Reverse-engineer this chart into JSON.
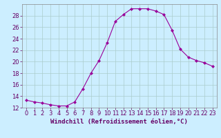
{
  "x": [
    0,
    1,
    2,
    3,
    4,
    5,
    6,
    7,
    8,
    9,
    10,
    11,
    12,
    13,
    14,
    15,
    16,
    17,
    18,
    19,
    20,
    21,
    22,
    23
  ],
  "y": [
    13.3,
    13.0,
    12.8,
    12.5,
    12.3,
    12.3,
    13.0,
    15.3,
    18.0,
    20.2,
    23.3,
    27.0,
    28.2,
    29.2,
    29.2,
    29.2,
    28.8,
    28.2,
    25.5,
    22.2,
    20.8,
    20.2,
    19.8,
    19.2
  ],
  "line_color": "#990099",
  "marker": "D",
  "marker_size": 2,
  "xlabel": "Windchill (Refroidissement éolien,°C)",
  "xlabel_fontsize": 6.5,
  "xlabel_color": "#660066",
  "ylim": [
    12,
    30
  ],
  "xlim": [
    -0.5,
    23.5
  ],
  "yticks": [
    12,
    14,
    16,
    18,
    20,
    22,
    24,
    26,
    28
  ],
  "xticks": [
    0,
    1,
    2,
    3,
    4,
    5,
    6,
    7,
    8,
    9,
    10,
    11,
    12,
    13,
    14,
    15,
    16,
    17,
    18,
    19,
    20,
    21,
    22,
    23
  ],
  "tick_fontsize": 6,
  "background_color": "#cceeff",
  "grid_color": "#aacccc",
  "figure_bg": "#cceeff",
  "spine_color": "#888888"
}
